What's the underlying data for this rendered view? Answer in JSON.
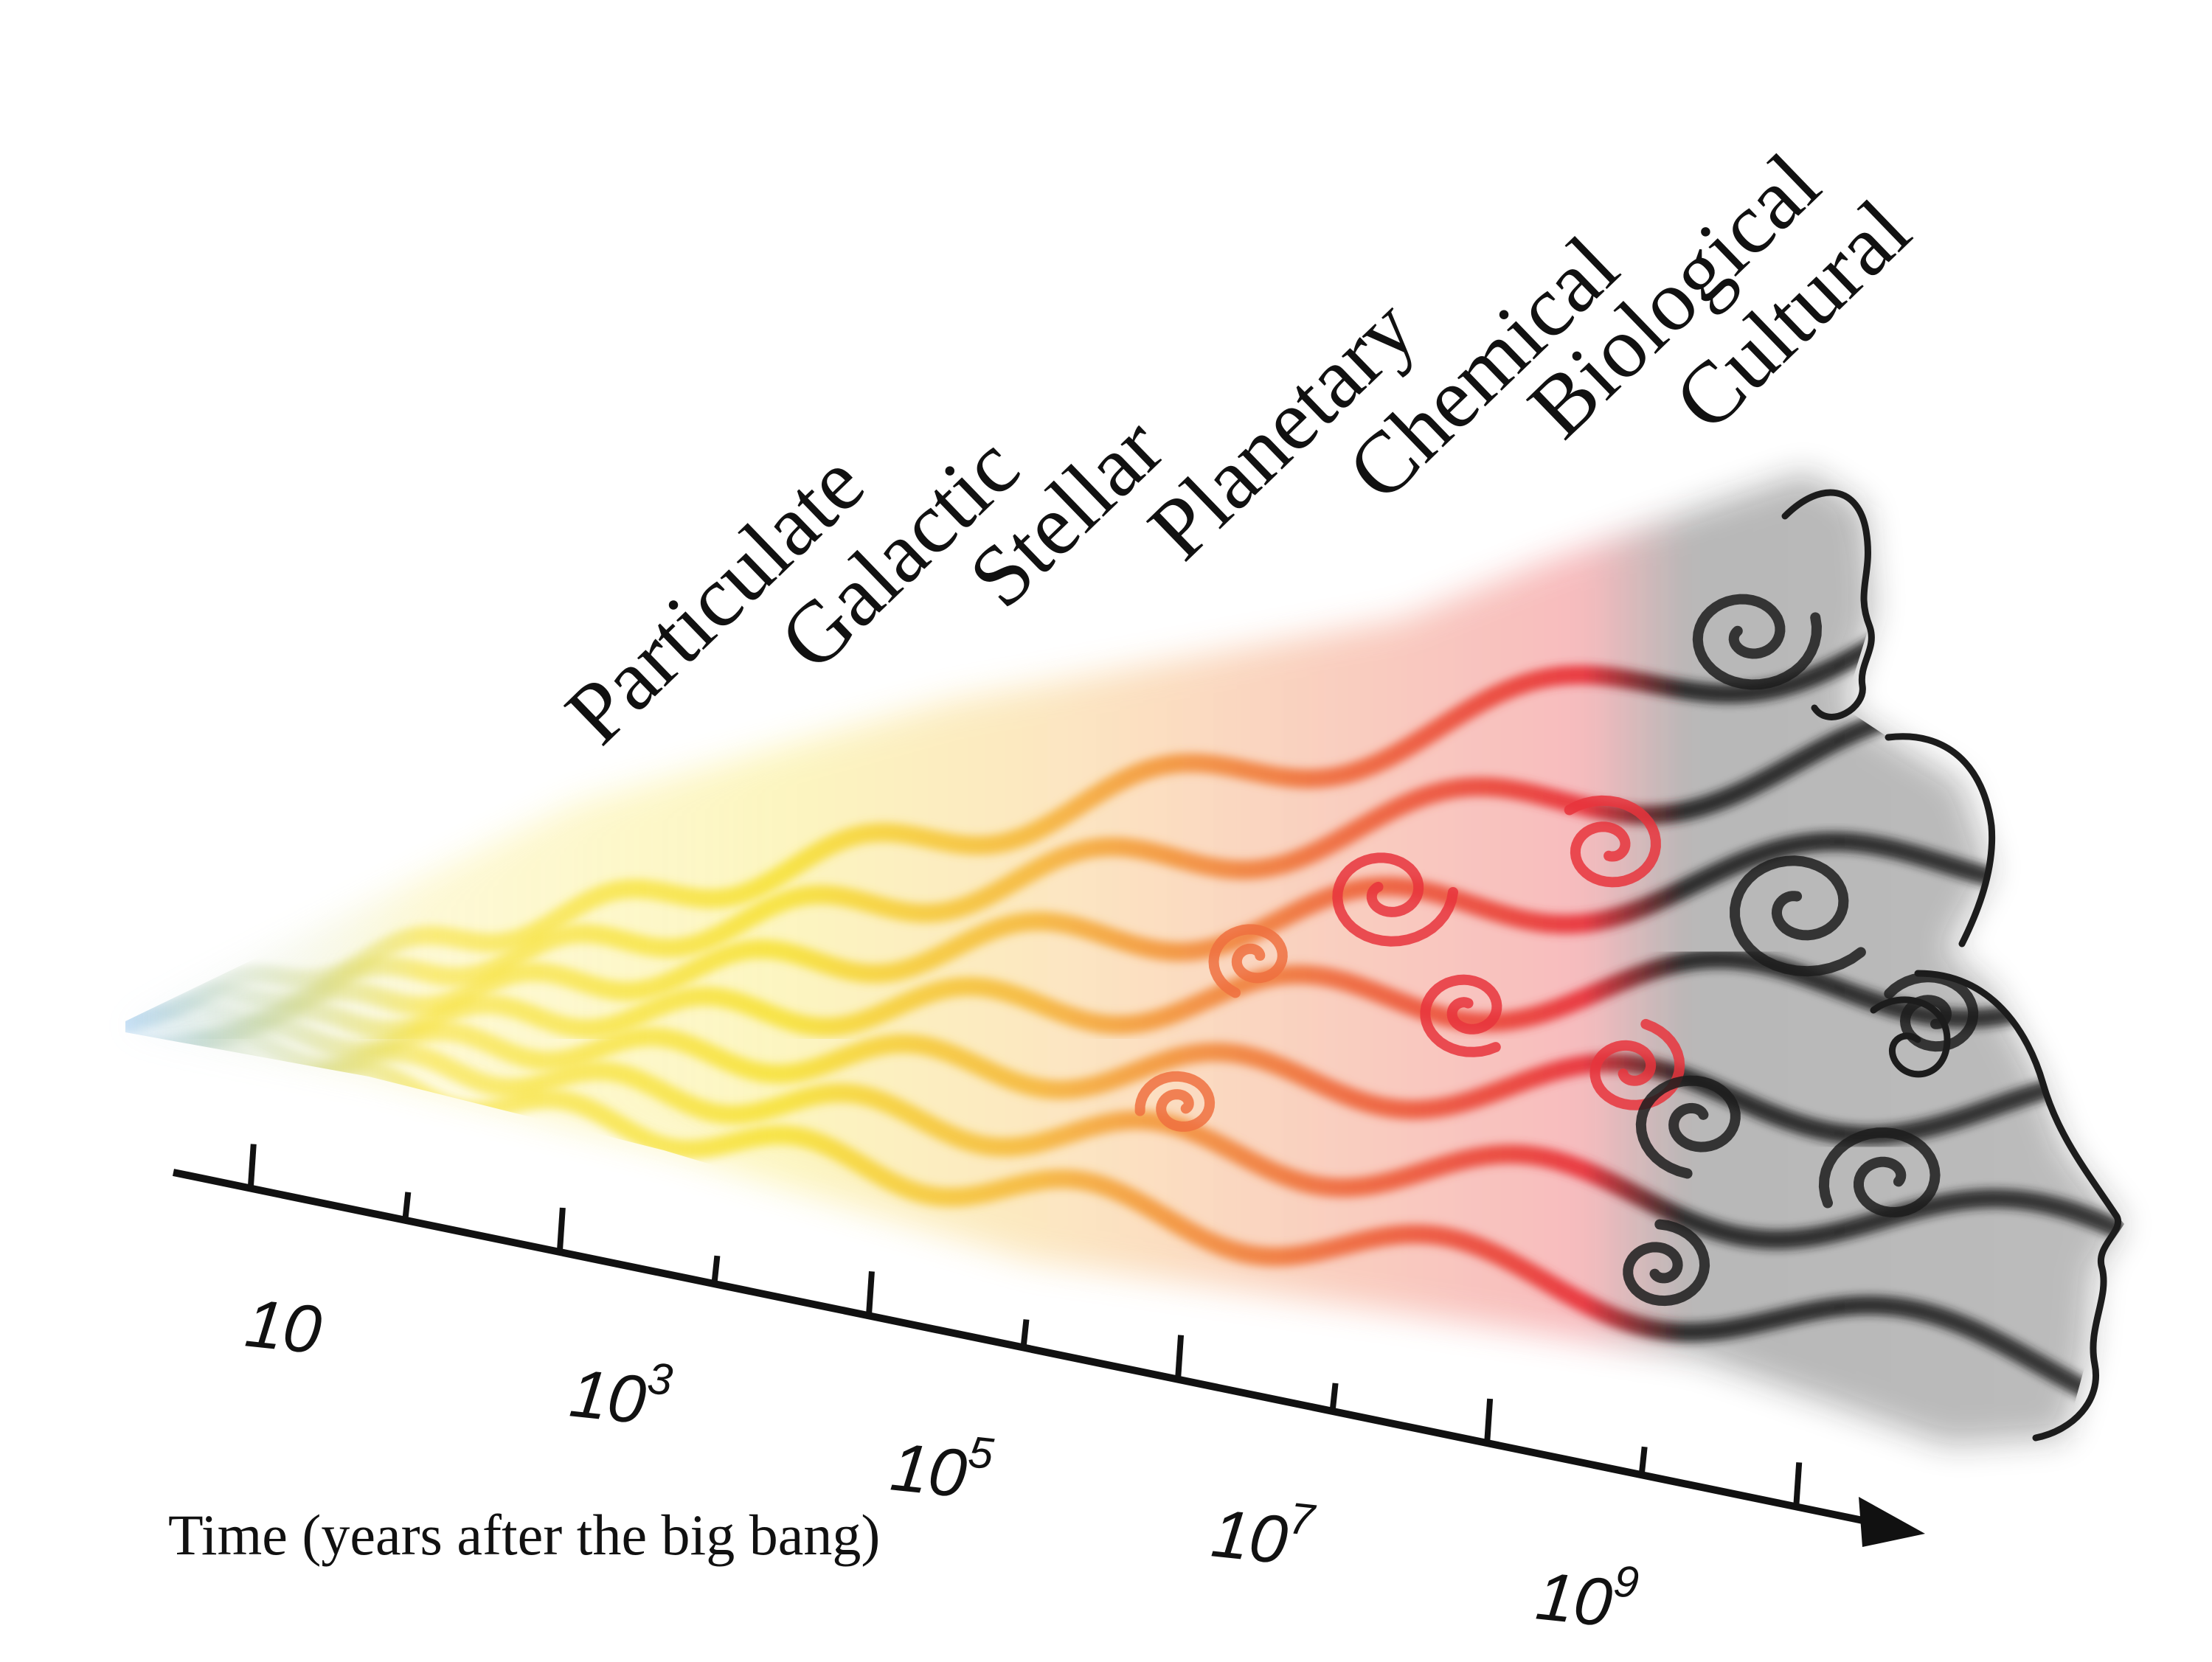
{
  "diagram": {
    "eras": [
      "Particulate",
      "Galactic",
      "Stellar",
      "Planetary",
      "Chemical",
      "Biological",
      "Cultural"
    ],
    "axis": {
      "title": "Time (years after the big bang)",
      "ticks": [
        {
          "base": "10",
          "exp": ""
        },
        {
          "base": "10",
          "exp": "3"
        },
        {
          "base": "10",
          "exp": "5"
        },
        {
          "base": "10",
          "exp": "7"
        },
        {
          "base": "10",
          "exp": "9"
        }
      ]
    },
    "colors": {
      "early": "#8fc0e8",
      "particulate": "#f7e23a",
      "galactic": "#f6b93c",
      "stellar": "#ef7040",
      "planetary": "#e8343c",
      "later": "#1c1c1c",
      "axis": "#111111"
    }
  }
}
